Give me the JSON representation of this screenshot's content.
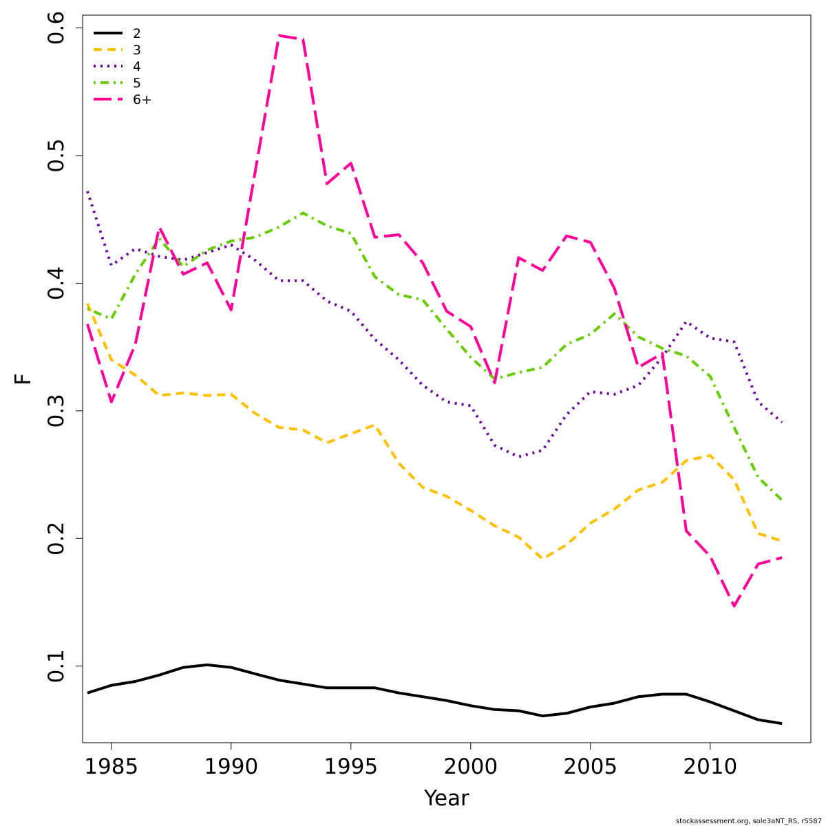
{
  "chart_data": {
    "type": "line",
    "xlabel": "Year",
    "ylabel": "F",
    "xlim": [
      1983.8,
      2014.2
    ],
    "ylim": [
      0.04,
      0.61
    ],
    "x_ticks": [
      1985,
      1990,
      1995,
      2000,
      2005,
      2010
    ],
    "y_ticks": [
      0.1,
      0.2,
      0.3,
      0.4,
      0.5,
      0.6
    ],
    "x_tick_labels": [
      "1985",
      "1990",
      "1995",
      "2000",
      "2005",
      "2010"
    ],
    "y_tick_labels": [
      "0.1",
      "0.2",
      "0.3",
      "0.4",
      "0.5",
      "0.6"
    ],
    "grid": false,
    "legend_position": "top-left",
    "x": [
      1984,
      1985,
      1986,
      1987,
      1988,
      1989,
      1990,
      1991,
      1992,
      1993,
      1994,
      1995,
      1996,
      1997,
      1998,
      1999,
      2000,
      2001,
      2002,
      2003,
      2004,
      2005,
      2006,
      2007,
      2008,
      2009,
      2010,
      2011,
      2012,
      2013
    ],
    "series": [
      {
        "name": "2",
        "color": "#000000",
        "dash": "solid",
        "values": [
          0.079,
          0.085,
          0.088,
          0.093,
          0.099,
          0.101,
          0.099,
          0.094,
          0.089,
          0.086,
          0.083,
          0.083,
          0.083,
          0.079,
          0.076,
          0.073,
          0.069,
          0.066,
          0.065,
          0.061,
          0.063,
          0.068,
          0.071,
          0.076,
          0.078,
          0.078,
          0.072,
          0.065,
          0.058,
          0.055
        ]
      },
      {
        "name": "3",
        "color": "#FFC000",
        "dash": "dashed",
        "values": [
          0.384,
          0.34,
          0.328,
          0.312,
          0.314,
          0.312,
          0.313,
          0.298,
          0.287,
          0.285,
          0.275,
          0.282,
          0.289,
          0.259,
          0.24,
          0.233,
          0.222,
          0.21,
          0.201,
          0.184,
          0.195,
          0.212,
          0.223,
          0.238,
          0.244,
          0.261,
          0.265,
          0.246,
          0.204,
          0.198
        ]
      },
      {
        "name": "4",
        "color": "#660099",
        "dash": "dotted",
        "values": [
          0.472,
          0.414,
          0.427,
          0.421,
          0.418,
          0.424,
          0.43,
          0.418,
          0.402,
          0.402,
          0.386,
          0.378,
          0.356,
          0.34,
          0.32,
          0.307,
          0.304,
          0.273,
          0.264,
          0.269,
          0.297,
          0.315,
          0.313,
          0.32,
          0.342,
          0.37,
          0.357,
          0.354,
          0.307,
          0.291
        ]
      },
      {
        "name": "5",
        "color": "#66CC00",
        "dash": "dotdash",
        "values": [
          0.38,
          0.372,
          0.407,
          0.435,
          0.413,
          0.426,
          0.433,
          0.436,
          0.444,
          0.455,
          0.445,
          0.439,
          0.405,
          0.391,
          0.387,
          0.364,
          0.342,
          0.325,
          0.33,
          0.334,
          0.352,
          0.36,
          0.376,
          0.358,
          0.349,
          0.343,
          0.327,
          0.287,
          0.248,
          0.23
        ]
      },
      {
        "name": "6+",
        "color": "#FF0099",
        "dash": "longdash",
        "values": [
          0.368,
          0.307,
          0.352,
          0.444,
          0.407,
          0.416,
          0.379,
          0.487,
          0.594,
          0.591,
          0.478,
          0.494,
          0.436,
          0.438,
          0.416,
          0.378,
          0.366,
          0.322,
          0.42,
          0.41,
          0.437,
          0.432,
          0.396,
          0.334,
          0.345,
          0.206,
          0.186,
          0.147,
          0.18,
          0.185
        ]
      }
    ]
  },
  "credit": "stockassessment.org, sole3aNT_RS, r5587"
}
